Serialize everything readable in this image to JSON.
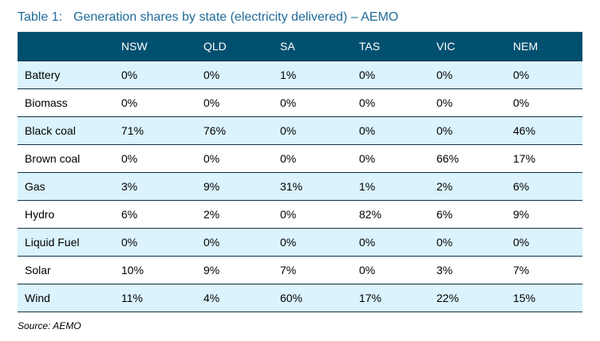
{
  "caption": {
    "number": "Table 1:",
    "title": "Generation shares by state (electricity delivered) – AEMO"
  },
  "table": {
    "columns": [
      "",
      "NSW",
      "QLD",
      "SA",
      "TAS",
      "VIC",
      "NEM"
    ],
    "rows": [
      {
        "label": "Battery",
        "values": [
          "0%",
          "0%",
          "1%",
          "0%",
          "0%",
          "0%"
        ]
      },
      {
        "label": "Biomass",
        "values": [
          "0%",
          "0%",
          "0%",
          "0%",
          "0%",
          "0%"
        ]
      },
      {
        "label": "Black coal",
        "values": [
          "71%",
          "76%",
          "0%",
          "0%",
          "0%",
          "46%"
        ]
      },
      {
        "label": "Brown coal",
        "values": [
          "0%",
          "0%",
          "0%",
          "0%",
          "66%",
          "17%"
        ]
      },
      {
        "label": "Gas",
        "values": [
          "3%",
          "9%",
          "31%",
          "1%",
          "2%",
          "6%"
        ]
      },
      {
        "label": "Hydro",
        "values": [
          "6%",
          "2%",
          "0%",
          "82%",
          "6%",
          "9%"
        ]
      },
      {
        "label": "Liquid Fuel",
        "values": [
          "0%",
          "0%",
          "0%",
          "0%",
          "0%",
          "0%"
        ]
      },
      {
        "label": "Solar",
        "values": [
          "10%",
          "9%",
          "7%",
          "0%",
          "3%",
          "7%"
        ]
      },
      {
        "label": "Wind",
        "values": [
          "11%",
          "4%",
          "60%",
          "17%",
          "22%",
          "15%"
        ]
      }
    ]
  },
  "source": "Source: AEMO",
  "colors": {
    "caption_text": "#1f6b99",
    "header_bg": "#02506f",
    "header_text": "#ffffff",
    "row_alt_bg": "#dbf3fc",
    "row_bg": "#ffffff",
    "rule": "#0b3146"
  }
}
